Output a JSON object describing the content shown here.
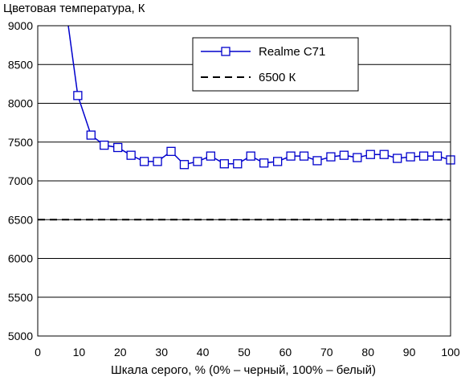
{
  "chart_data": {
    "type": "line",
    "title": "",
    "ylabel": "Цветовая температура, К",
    "xlabel": "Шкала серого, % (0% – черный, 100% – белый)",
    "xlim": [
      0,
      100
    ],
    "ylim": [
      5000,
      9000
    ],
    "xticks": [
      "0",
      "10",
      "20",
      "30",
      "40",
      "50",
      "60",
      "70",
      "80",
      "90",
      "100"
    ],
    "yticks": [
      "5000",
      "5500",
      "6000",
      "6500",
      "7000",
      "7500",
      "8000",
      "8500",
      "9000"
    ],
    "grid": "horizontal",
    "legend_position": "top-right",
    "series": [
      {
        "name": "Realme C71",
        "color": "#0000cc",
        "marker": "open-square",
        "x": [
          9.7,
          12.9,
          16.1,
          19.4,
          22.6,
          25.8,
          29.0,
          32.3,
          35.5,
          38.7,
          41.9,
          45.2,
          48.4,
          51.6,
          54.8,
          58.1,
          61.3,
          64.5,
          67.7,
          71.0,
          74.2,
          77.4,
          80.6,
          83.9,
          87.1,
          90.3,
          93.5,
          96.8,
          100.0
        ],
        "y": [
          8100,
          7590,
          7460,
          7430,
          7330,
          7250,
          7250,
          7380,
          7210,
          7250,
          7320,
          7220,
          7220,
          7320,
          7230,
          7250,
          7320,
          7320,
          7260,
          7310,
          7330,
          7300,
          7340,
          7340,
          7290,
          7310,
          7320,
          7320,
          7270
        ],
        "lead_in": {
          "x": [
            7.4,
            9.7
          ],
          "y": [
            9000,
            8100
          ]
        }
      },
      {
        "name": "6500 К",
        "color": "#000000",
        "style": "dashed",
        "y_constant": 6500
      }
    ]
  }
}
